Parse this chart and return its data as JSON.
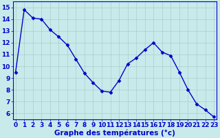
{
  "hours": [
    0,
    1,
    2,
    3,
    4,
    5,
    6,
    7,
    8,
    9,
    10,
    11,
    12,
    13,
    14,
    15,
    16,
    17,
    18,
    19,
    20,
    21,
    22,
    23
  ],
  "temperatures": [
    9.5,
    14.8,
    14.1,
    14.0,
    13.1,
    12.5,
    11.8,
    10.6,
    9.4,
    8.6,
    7.9,
    7.8,
    8.8,
    10.2,
    10.7,
    11.4,
    12.0,
    11.2,
    10.9,
    9.5,
    8.0,
    6.8,
    6.3,
    5.7
  ],
  "line_color": "#0000cc",
  "marker": "D",
  "marker_size": 2.5,
  "bg_color": "#c8eaea",
  "grid_color": "#aacccc",
  "xlabel": "Graphe des températures (°c)",
  "xlabel_color": "#0000cc",
  "ylabel_ticks": [
    6,
    7,
    8,
    9,
    10,
    11,
    12,
    13,
    14,
    15
  ],
  "xlim": [
    -0.3,
    23.3
  ],
  "ylim": [
    5.5,
    15.5
  ],
  "tick_color": "#0000cc",
  "tick_fontsize": 6.5,
  "xlabel_fontsize": 7.5,
  "spine_color": "#0000cc",
  "line_width": 1.0
}
